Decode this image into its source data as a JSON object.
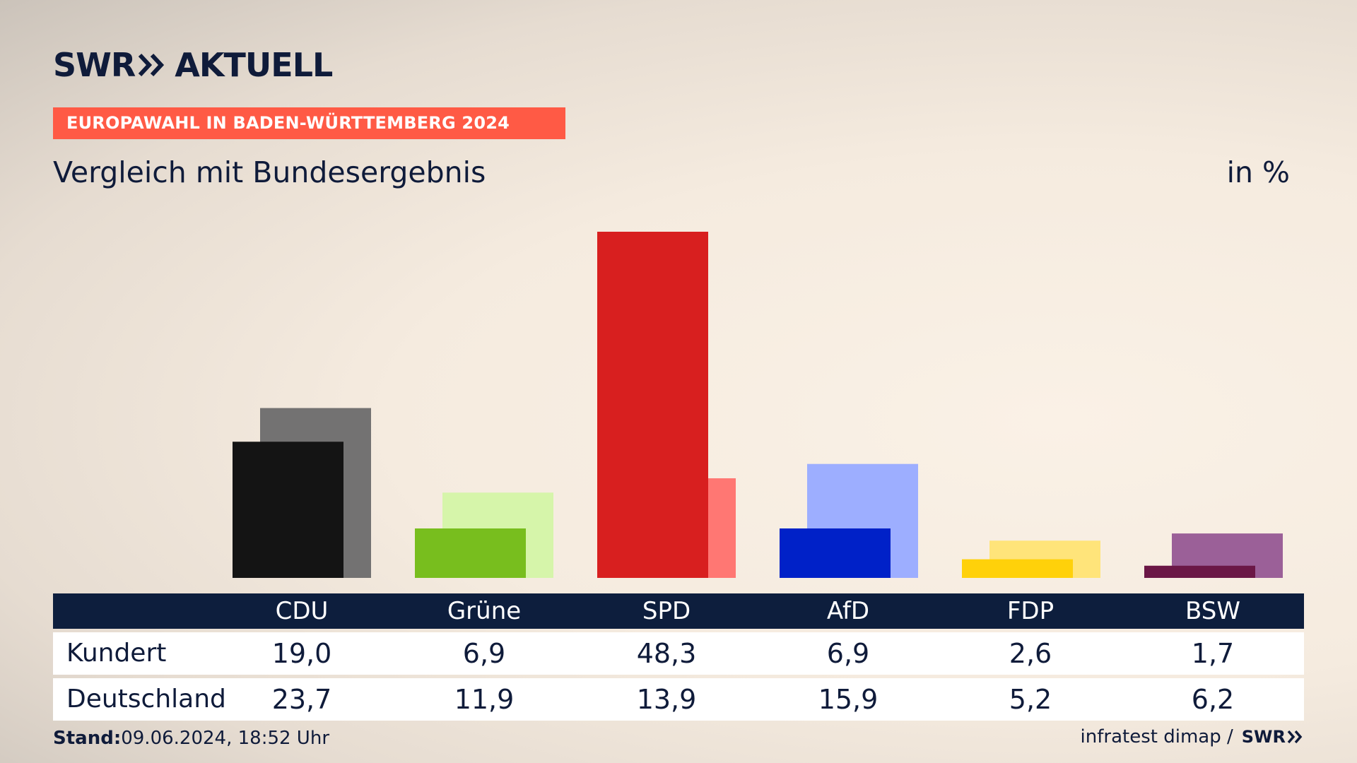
{
  "header": {
    "brand_left": "SWR",
    "brand_right": "AKTUELL",
    "kicker": "EUROPAWAHL IN BADEN-WÜRTTEMBERG 2024",
    "title": "Vergleich mit Bundesergebnis",
    "unit": "in %"
  },
  "chart_data": {
    "type": "bar",
    "categories": [
      "CDU",
      "Grüne",
      "SPD",
      "AfD",
      "FDP",
      "BSW"
    ],
    "series": [
      {
        "name": "Kundert",
        "values": [
          19.0,
          6.9,
          48.3,
          6.9,
          2.6,
          1.7
        ],
        "colors": [
          "#141414",
          "#78be1e",
          "#d81f1f",
          "#0021c8",
          "#ffd10a",
          "#6b1746"
        ]
      },
      {
        "name": "Deutschland",
        "values": [
          23.7,
          11.9,
          13.9,
          15.9,
          5.2,
          6.2
        ],
        "colors": [
          "#737272",
          "#d6f5aa",
          "#ff7773",
          "#9daeff",
          "#ffe47a",
          "#9b6098"
        ]
      }
    ],
    "ylim": [
      0,
      48.3
    ],
    "title": "Vergleich mit Bundesergebnis",
    "xlabel": "",
    "ylabel": ""
  },
  "table": {
    "headers": [
      "CDU",
      "Grüne",
      "SPD",
      "AfD",
      "FDP",
      "BSW"
    ],
    "rows": [
      {
        "label": "Kundert",
        "values": [
          "19,0",
          "6,9",
          "48,3",
          "6,9",
          "2,6",
          "1,7"
        ]
      },
      {
        "label": "Deutschland",
        "values": [
          "23,7",
          "11,9",
          "13,9",
          "15,9",
          "5,2",
          "6,2"
        ]
      }
    ]
  },
  "footer": {
    "stand_label": "Stand:",
    "stand_value": "09.06.2024, 18:52 Uhr",
    "source": "infratest dimap /",
    "source_brand": "SWR"
  }
}
